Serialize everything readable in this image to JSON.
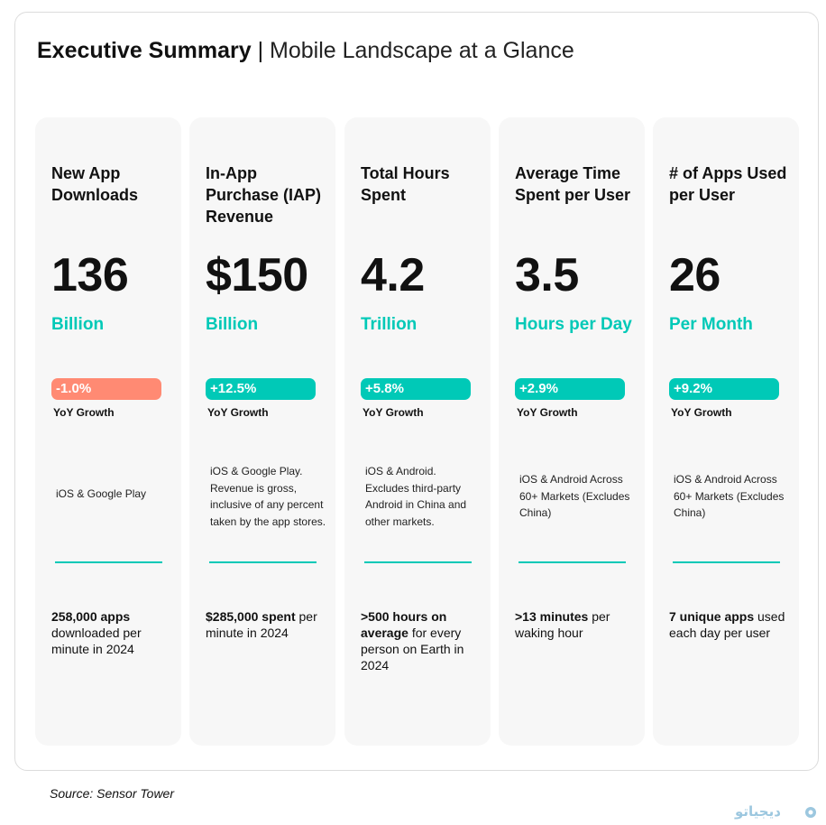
{
  "header": {
    "title_bold": "Executive Summary",
    "separator": "|",
    "title_light": "Mobile Landscape at a Glance"
  },
  "colors": {
    "accent_teal": "#00c9b7",
    "negative_coral": "#ff8a73",
    "card_bg": "#f7f7f7"
  },
  "cards": [
    {
      "title": "New App Downloads",
      "value": "136",
      "unit": "Billion",
      "growth": "-1.0%",
      "growth_label": "YoY Growth",
      "note": "iOS & Google Play",
      "footer_bold": "258,000 apps",
      "footer_rest": "downloaded per minute in 2024"
    },
    {
      "title": "In-App Purchase (IAP) Revenue",
      "value": "$150",
      "unit": "Billion",
      "growth": "+12.5%",
      "growth_label": "YoY Growth",
      "note": "iOS & Google Play. Revenue is gross, inclusive of any percent taken by the app stores.",
      "footer_bold": "$285,000 spent",
      "footer_rest": "per minute in 2024"
    },
    {
      "title": "Total Hours Spent",
      "value": "4.2",
      "unit": "Trillion",
      "growth": "+5.8%",
      "growth_label": "YoY Growth",
      "note": "iOS & Android. Excludes third-party Android in China and other markets.",
      "footer_bold": ">500 hours on average",
      "footer_rest": "for every person on Earth in 2024"
    },
    {
      "title": "Average Time Spent per User",
      "value": "3.5",
      "unit": "Hours per Day",
      "growth": "+2.9%",
      "growth_label": "YoY Growth",
      "note": "iOS & Android Across 60+ Markets (Excludes China)",
      "footer_bold": ">13 minutes",
      "footer_rest": "per waking hour"
    },
    {
      "title": "# of Apps Used per User",
      "value": "26",
      "unit": "Per Month",
      "growth": "+9.2%",
      "growth_label": "YoY Growth",
      "note": "iOS & Android Across 60+ Markets (Excludes China)",
      "footer_bold": "7 unique apps",
      "footer_rest": "used each day per user"
    }
  ],
  "source": "Source: Sensor Tower",
  "watermark": "دیجیاتو"
}
